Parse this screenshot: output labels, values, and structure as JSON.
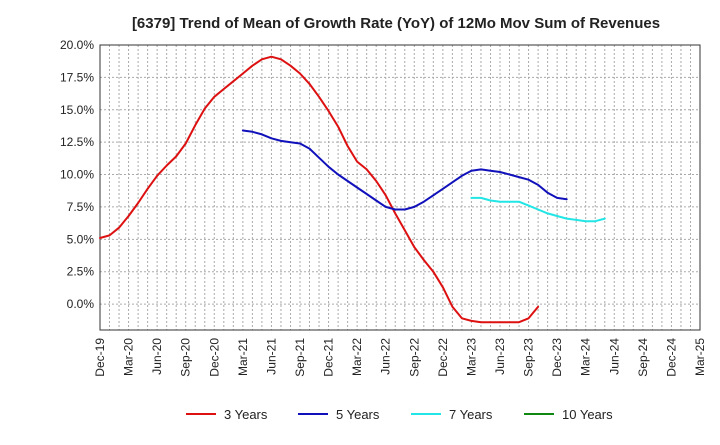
{
  "chart_data": {
    "type": "line",
    "title": "[6379]  Trend of Mean of Growth Rate (YoY) of 12Mo Mov Sum of Revenues",
    "xlabel": "",
    "ylabel": "",
    "ylim": [
      -2.0,
      20.0
    ],
    "y_ticks": [
      0.0,
      2.5,
      5.0,
      7.5,
      10.0,
      12.5,
      15.0,
      17.5,
      20.0
    ],
    "y_tick_labels": [
      "0.0%",
      "2.5%",
      "5.0%",
      "7.5%",
      "10.0%",
      "12.5%",
      "15.0%",
      "17.5%",
      "20.0%"
    ],
    "x_tick_labels": [
      "Dec-19",
      "Mar-20",
      "Jun-20",
      "Sep-20",
      "Dec-20",
      "Mar-21",
      "Jun-21",
      "Sep-21",
      "Dec-21",
      "Mar-22",
      "Jun-22",
      "Sep-22",
      "Dec-22",
      "Mar-23",
      "Jun-23",
      "Sep-23",
      "Dec-23",
      "Mar-24",
      "Jun-24",
      "Sep-24",
      "Dec-24",
      "Mar-25"
    ],
    "months_per_tick": 3,
    "grid": true,
    "legend_position": "bottom",
    "series": [
      {
        "name": "3 Years",
        "color": "#dd1111",
        "start_month": 0,
        "values": [
          5.1,
          5.3,
          5.9,
          6.8,
          7.8,
          8.9,
          9.9,
          10.7,
          11.4,
          12.4,
          13.8,
          15.1,
          16.0,
          16.6,
          17.2,
          17.8,
          18.4,
          18.9,
          19.1,
          18.9,
          18.4,
          17.8,
          17.0,
          16.0,
          14.9,
          13.7,
          12.2,
          11.0,
          10.4,
          9.5,
          8.4,
          7.0,
          5.7,
          4.4,
          3.4,
          2.5,
          1.3,
          -0.2,
          -1.1,
          -1.3,
          -1.4,
          -1.4,
          -1.4,
          -1.4,
          -1.4,
          -1.1,
          -0.2
        ]
      },
      {
        "name": "5 Years",
        "color": "#1111bb",
        "start_month": 15,
        "values": [
          13.4,
          13.3,
          13.1,
          12.8,
          12.6,
          12.5,
          12.4,
          12.0,
          11.3,
          10.6,
          10.0,
          9.5,
          9.0,
          8.5,
          8.0,
          7.5,
          7.3,
          7.3,
          7.5,
          7.9,
          8.4,
          8.9,
          9.4,
          9.9,
          10.3,
          10.4,
          10.3,
          10.2,
          10.0,
          9.8,
          9.6,
          9.2,
          8.6,
          8.2,
          8.1
        ]
      },
      {
        "name": "7 Years",
        "color": "#22e5e5",
        "start_month": 39,
        "values": [
          8.2,
          8.2,
          8.0,
          7.9,
          7.9,
          7.9,
          7.6,
          7.3,
          7.0,
          6.8,
          6.6,
          6.5,
          6.4,
          6.4,
          6.6
        ]
      },
      {
        "name": "10 Years",
        "color": "#118811",
        "start_month": 0,
        "values": []
      }
    ]
  }
}
